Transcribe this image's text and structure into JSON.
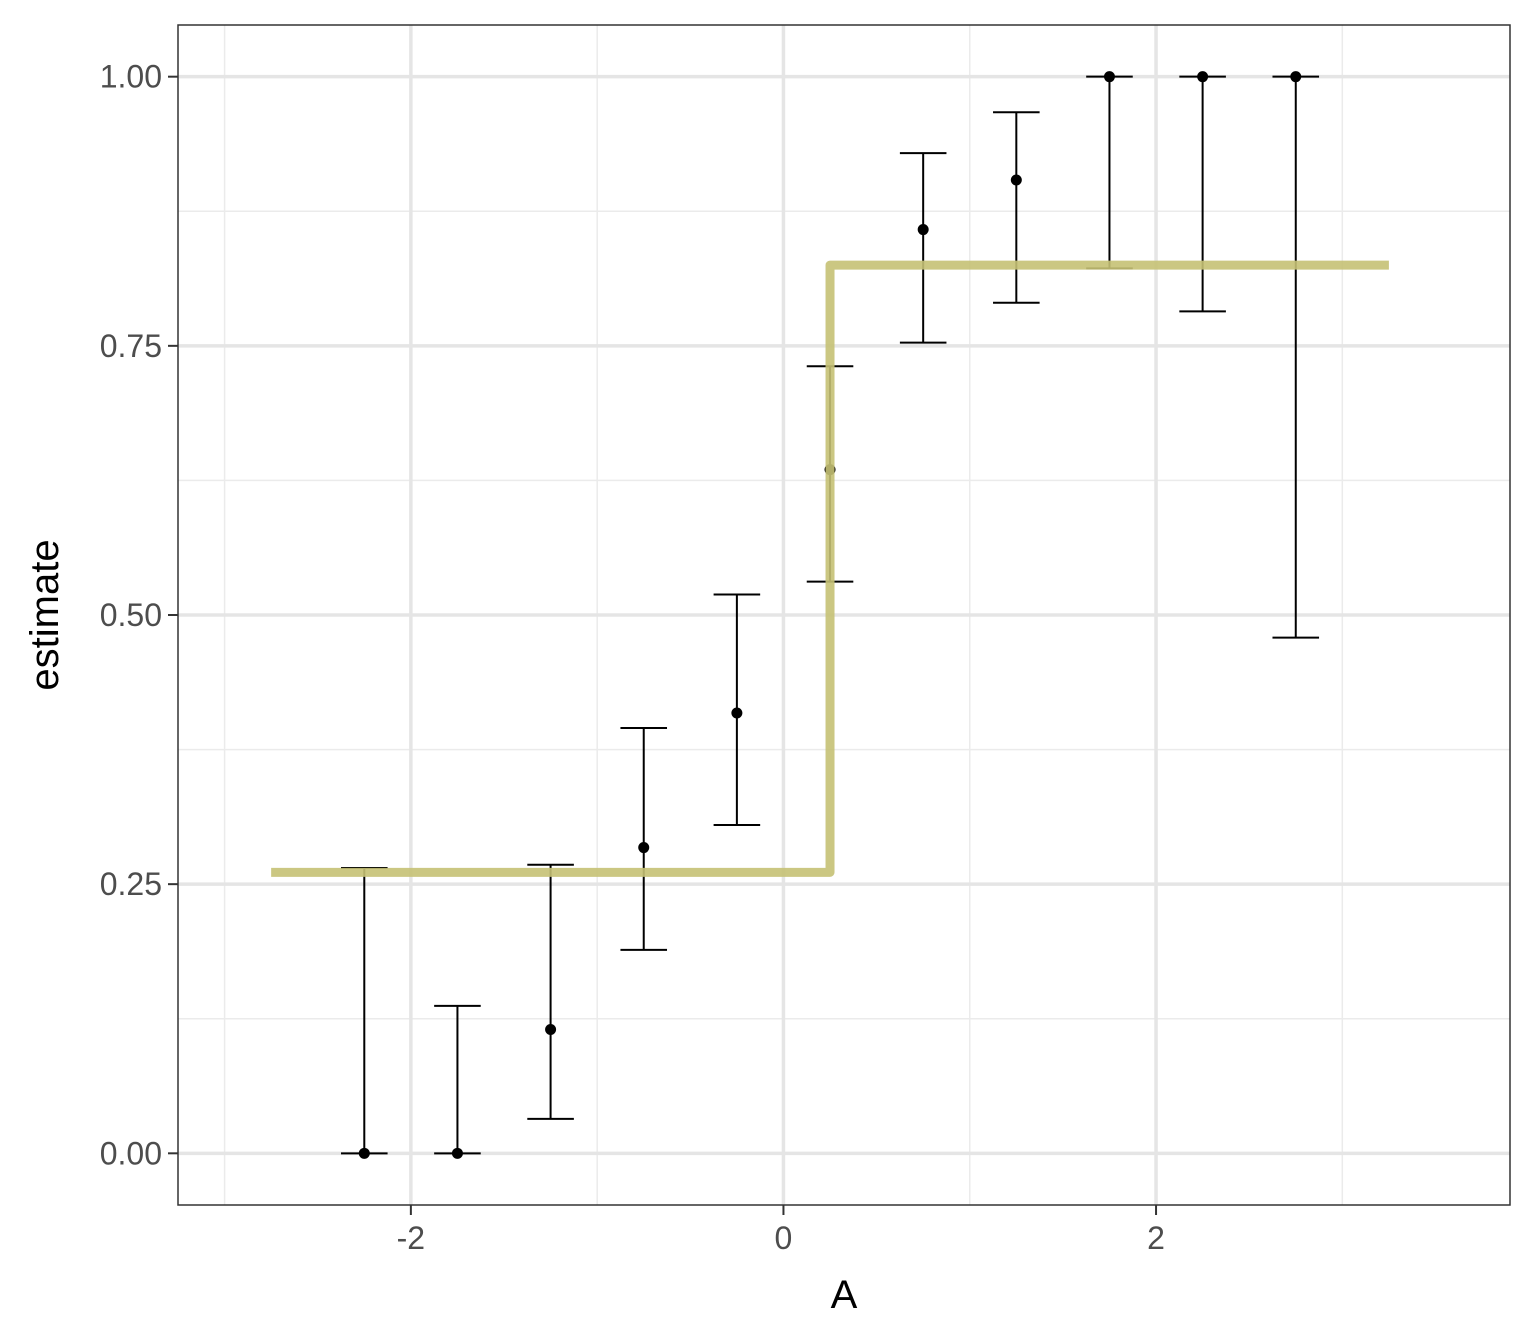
{
  "chart_data": {
    "type": "scatter",
    "title": "",
    "xlabel": "A",
    "ylabel": "estimate",
    "xlim": [
      -3.25,
      3.9
    ],
    "ylim": [
      -0.048,
      1.048
    ],
    "x_ticks": [
      -2,
      0,
      2
    ],
    "x_tick_labels": [
      "-2",
      "0",
      "2"
    ],
    "x_minor_ticks": [
      -3,
      -1,
      1,
      3
    ],
    "y_ticks": [
      0,
      0.25,
      0.5,
      0.75,
      1.0
    ],
    "y_tick_labels": [
      "0.00",
      "0.25",
      "0.50",
      "0.75",
      "1.00"
    ],
    "y_minor_ticks": [
      0.125,
      0.375,
      0.625,
      0.875
    ],
    "grid": true,
    "series": [
      {
        "type": "errorbar",
        "color": "#000000",
        "points": [
          {
            "x": -2.25,
            "y": 0.0,
            "ymin": 0.0,
            "ymax": 0.265
          },
          {
            "x": -1.75,
            "y": 0.0,
            "ymin": 0.0,
            "ymax": 0.137
          },
          {
            "x": -1.25,
            "y": 0.115,
            "ymin": 0.032,
            "ymax": 0.268
          },
          {
            "x": -0.75,
            "y": 0.284,
            "ymin": 0.189,
            "ymax": 0.395
          },
          {
            "x": -0.25,
            "y": 0.409,
            "ymin": 0.305,
            "ymax": 0.519
          },
          {
            "x": 0.25,
            "y": 0.635,
            "ymin": 0.531,
            "ymax": 0.731
          },
          {
            "x": 0.75,
            "y": 0.858,
            "ymin": 0.753,
            "ymax": 0.929
          },
          {
            "x": 1.25,
            "y": 0.904,
            "ymin": 0.79,
            "ymax": 0.967
          },
          {
            "x": 1.75,
            "y": 1.0,
            "ymin": 0.822,
            "ymax": 1.0
          },
          {
            "x": 2.25,
            "y": 1.0,
            "ymin": 0.782,
            "ymax": 1.0
          },
          {
            "x": 2.75,
            "y": 1.0,
            "ymin": 0.479,
            "ymax": 1.0
          }
        ]
      },
      {
        "type": "step",
        "color": "#c5c174",
        "points": [
          {
            "x": -2.75,
            "y": 0.261
          },
          {
            "x": 0.25,
            "y": 0.261
          },
          {
            "x": 0.25,
            "y": 0.825
          },
          {
            "x": 3.25,
            "y": 0.825
          }
        ]
      }
    ]
  }
}
